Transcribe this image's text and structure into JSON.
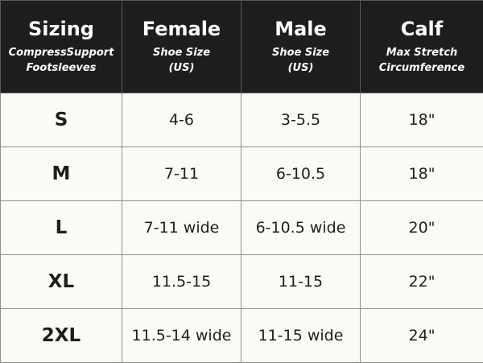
{
  "header": {
    "columns": [
      {
        "title": "Sizing",
        "subtitle": "CompressSupport\nFootsleeves"
      },
      {
        "title": "Female",
        "subtitle": "Shoe Size\n(US)"
      },
      {
        "title": "Male",
        "subtitle": "Shoe Size\n(US)"
      },
      {
        "title": "Calf",
        "subtitle": "Max Stretch\nCircumference"
      }
    ]
  },
  "rows": [
    {
      "size": "S",
      "female": "4-6",
      "male": "3-5.5",
      "calf": "18\""
    },
    {
      "size": "M",
      "female": "7-11",
      "male": "6-10.5",
      "calf": "18\""
    },
    {
      "size": "L",
      "female": "7-11 wide",
      "male": "6-10.5 wide",
      "calf": "20\""
    },
    {
      "size": "XL",
      "female": "11.5-15",
      "male": "11-15",
      "calf": "22\""
    },
    {
      "size": "2XL",
      "female": "11.5-14 wide",
      "male": "11-15 wide",
      "calf": "24\""
    }
  ],
  "colors": {
    "header_background": "#1f1d1e",
    "header_text": "#ffffff",
    "body_background": "#fbfbf5",
    "body_text": "#1e1e1e",
    "grid_lines": "#8f8f8f"
  }
}
